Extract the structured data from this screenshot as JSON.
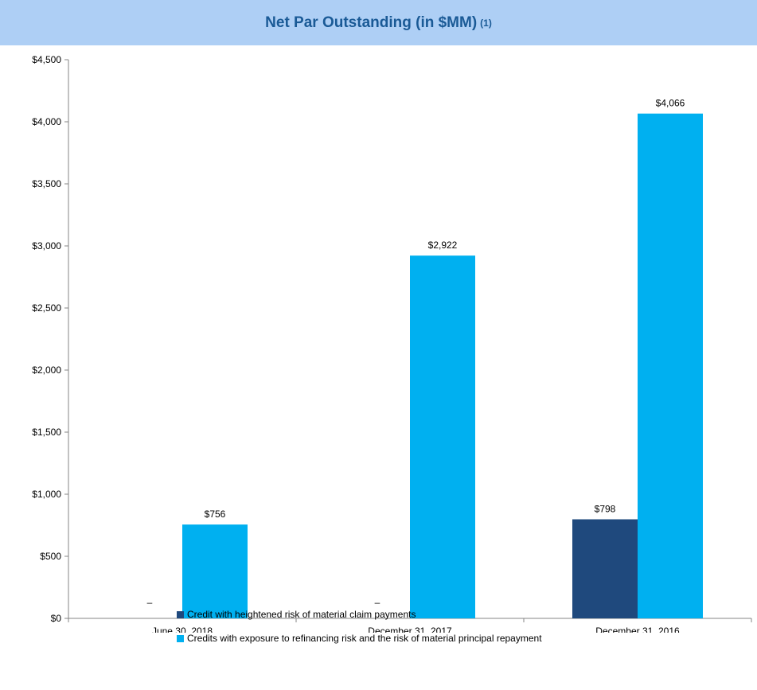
{
  "header": {
    "title": "Net Par Outstanding (in $MM)",
    "footnote_marker": "(1)"
  },
  "colors": {
    "title_bg": "#aecff5",
    "title_text": "#1a5a96",
    "series_dark": "#1f497d",
    "series_light": "#00b0f0"
  },
  "chart_data": {
    "type": "bar",
    "title": "Net Par Outstanding (in $MM)",
    "categories": [
      "June 30, 2018",
      "December 31, 2017",
      "December 31, 2016"
    ],
    "series": [
      {
        "name": "Credit with heightened risk of material claim payments",
        "values": [
          0,
          0,
          798
        ],
        "labels": [
          "–",
          "–",
          "$798"
        ],
        "color": "#1f497d"
      },
      {
        "name": "Credits with exposure to refinancing risk and the risk of material principal repayment",
        "values": [
          756,
          2922,
          4066
        ],
        "labels": [
          "$756",
          "$2,922",
          "$4,066"
        ],
        "color": "#00b0f0"
      }
    ],
    "ylim": [
      0,
      4500
    ],
    "yticks": [
      0,
      500,
      1000,
      1500,
      2000,
      2500,
      3000,
      3500,
      4000,
      4500
    ],
    "ytick_labels": [
      "$0",
      "$500",
      "$1,000",
      "$1,500",
      "$2,000",
      "$2,500",
      "$3,000",
      "$3,500",
      "$4,000",
      "$4,500"
    ],
    "grid": false,
    "legend_position": "bottom"
  }
}
